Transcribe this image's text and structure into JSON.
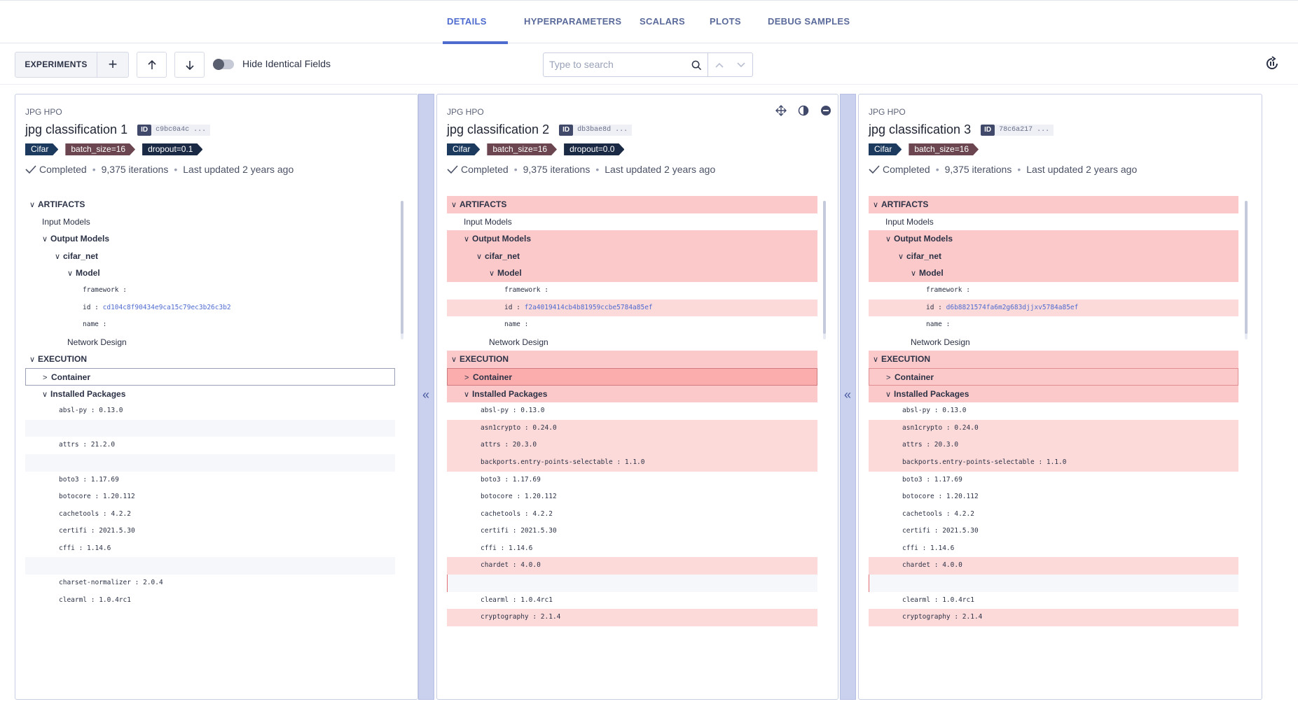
{
  "tabs": [
    {
      "label": "DETAILS",
      "active": true
    },
    {
      "label": "HYPERPARAMETERS",
      "active": false
    },
    {
      "label": "SCALARS",
      "active": false
    },
    {
      "label": "PLOTS",
      "active": false
    },
    {
      "label": "DEBUG SAMPLES",
      "active": false
    }
  ],
  "toolbar": {
    "experiments_label": "EXPERIMENTS",
    "add_label": "+",
    "hide_identical_label": "Hide Identical Fields",
    "search_placeholder": "Type to search"
  },
  "panels": [
    {
      "project": "JPG HPO",
      "title": "jpg classification 1",
      "id_label": "ID",
      "id_value": "c9bc0a4c ...",
      "tags": [
        {
          "label": "Cifar",
          "color": "blue"
        },
        {
          "label": "batch_size=16",
          "color": "brown"
        },
        {
          "label": "dropout=0.1",
          "color": "navy"
        }
      ],
      "status": "Completed",
      "iterations": "9,375 iterations",
      "updated": "Last updated 2 years ago",
      "model_id": "cd104c8f90434e9ca15c79ec3b26c3b2"
    },
    {
      "project": "JPG HPO",
      "title": "jpg classification 2",
      "id_label": "ID",
      "id_value": "db3bae8d ...",
      "tags": [
        {
          "label": "Cifar",
          "color": "blue"
        },
        {
          "label": "batch_size=16",
          "color": "brown"
        },
        {
          "label": "dropout=0.0",
          "color": "navy"
        }
      ],
      "status": "Completed",
      "iterations": "9,375 iterations",
      "updated": "Last updated 2 years ago",
      "model_id": "f2a4019414cb4b81959ccbe5784a85ef"
    },
    {
      "project": "JPG HPO",
      "title": "jpg classification 3",
      "id_label": "ID",
      "id_value": "78c6a217 ...",
      "tags": [
        {
          "label": "Cifar",
          "color": "blue"
        },
        {
          "label": "batch_size=16",
          "color": "brown"
        }
      ],
      "status": "Completed",
      "iterations": "9,375 iterations",
      "updated": "Last updated 2 years ago",
      "model_id": "d6b8821574fa6m2g683djjxv5784a85ef"
    }
  ],
  "tree": {
    "artifacts": "ARTIFACTS",
    "input_models": "Input Models",
    "output_models": "Output Models",
    "cifar_net": "cifar_net",
    "model": "Model",
    "framework": "framework :",
    "id_key": "id :",
    "name_key": "name :",
    "network_design": "Network Design",
    "execution": "EXECUTION",
    "container": "Container",
    "installed_packages": "Installed Packages"
  },
  "packages_panel1": [
    "absl-py : 0.13.0",
    "",
    "attrs : 21.2.0",
    "",
    "boto3 : 1.17.69",
    "botocore : 1.20.112",
    "cachetools : 4.2.2",
    "certifi : 2021.5.30",
    "cffi : 1.14.6",
    "",
    "charset-normalizer : 2.0.4",
    "clearml : 1.0.4rc1"
  ],
  "packages_compare": [
    "absl-py : 0.13.0",
    "asn1crypto : 0.24.0",
    "attrs : 20.3.0",
    "backports.entry-points-selectable : 1.1.0",
    "boto3 : 1.17.69",
    "botocore : 1.20.112",
    "cachetools : 4.2.2",
    "certifi : 2021.5.30",
    "cffi : 1.14.6",
    "chardet : 4.0.0",
    "",
    "clearml : 1.0.4rc1",
    "cryptography : 2.1.4"
  ]
}
